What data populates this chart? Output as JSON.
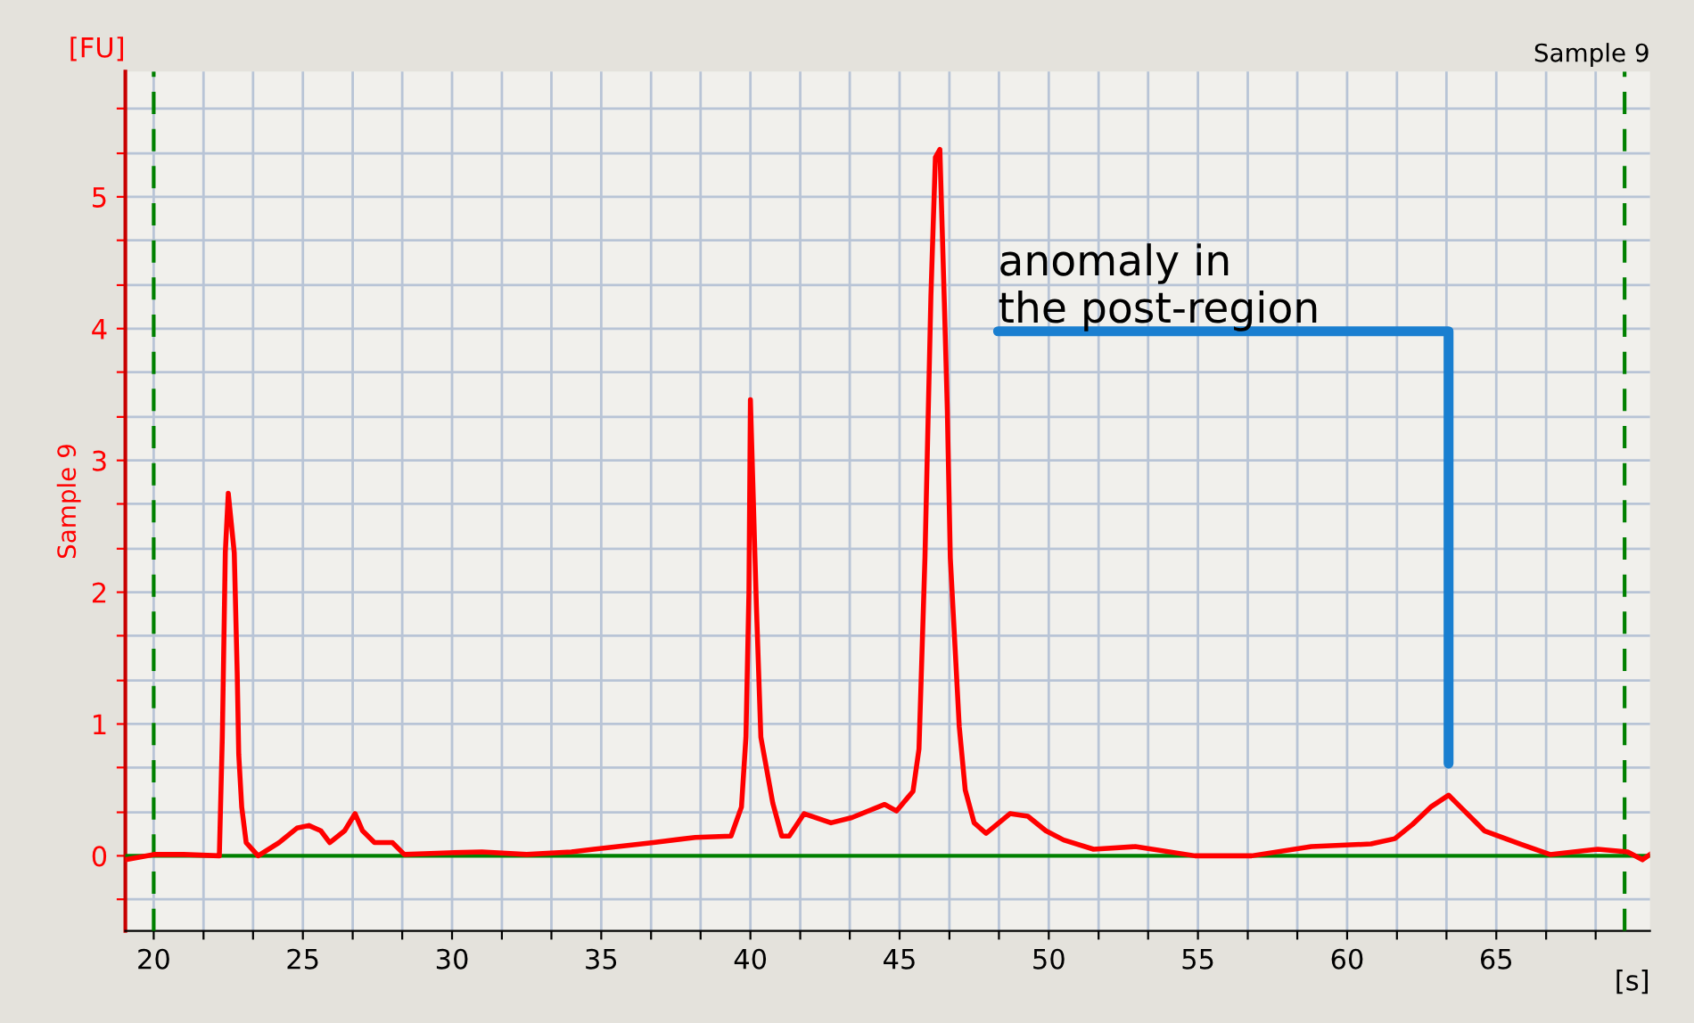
{
  "chart_data": {
    "type": "line",
    "title": "Sample 9",
    "ylabel": "Sample 9",
    "xlabel": "[s]",
    "annotations": [
      "[FU]",
      "anomaly in\nthe post-region"
    ],
    "x": [
      19.05,
      20.0,
      21.0,
      22.2,
      22.3,
      22.4,
      22.5,
      22.7,
      22.8,
      22.85,
      22.95,
      23.1,
      23.5,
      24.2,
      24.8,
      25.2,
      25.6,
      25.9,
      26.4,
      26.75,
      27.0,
      27.4,
      28.0,
      28.4,
      29.5,
      31.0,
      32.5,
      34.0,
      34.75,
      36.75,
      38.15,
      39.35,
      39.7,
      39.85,
      39.95,
      40.0,
      40.2,
      40.35,
      40.75,
      41.05,
      41.3,
      41.8,
      42.7,
      43.4,
      44.5,
      44.9,
      45.45,
      45.65,
      45.85,
      46.05,
      46.2,
      46.35,
      46.5,
      46.6,
      46.7,
      47.0,
      47.2,
      47.5,
      47.9,
      48.7,
      49.3,
      49.9,
      50.5,
      51.5,
      52.9,
      54.9,
      56.8,
      58.8,
      60.8,
      61.6,
      62.2,
      62.8,
      63.4,
      63.8,
      64.6,
      65.8,
      66.8,
      68.4,
      69.4,
      69.9,
      70.15
    ],
    "series": [
      {
        "color": "#ff0000",
        "values": [
          -0.03,
          0.01,
          0.01,
          0.0,
          0.9,
          2.3,
          2.75,
          2.3,
          1.38,
          0.77,
          0.37,
          0.1,
          0.0,
          0.1,
          0.21,
          0.23,
          0.19,
          0.1,
          0.19,
          0.32,
          0.19,
          0.1,
          0.1,
          0.01,
          0.02,
          0.03,
          0.01,
          0.03,
          0.05,
          0.1,
          0.14,
          0.15,
          0.37,
          0.9,
          2.0,
          3.46,
          1.9,
          0.9,
          0.4,
          0.15,
          0.15,
          0.32,
          0.25,
          0.29,
          0.39,
          0.34,
          0.49,
          0.81,
          2.26,
          4.25,
          5.3,
          5.36,
          4.2,
          3.38,
          2.26,
          0.98,
          0.5,
          0.25,
          0.17,
          0.32,
          0.3,
          0.19,
          0.12,
          0.05,
          0.07,
          0.0,
          0.0,
          0.07,
          0.09,
          0.13,
          0.24,
          0.37,
          0.46,
          0.37,
          0.19,
          0.09,
          0.01,
          0.05,
          0.03,
          -0.03,
          0.01
        ]
      }
    ],
    "xlim": [
      19.05,
      70.15
    ],
    "ylim": [
      -0.57,
      5.95
    ],
    "xticks": [
      20,
      {
        "value": 21.67,
        "label": null
      },
      {
        "value": 23.33,
        "label": null
      },
      25,
      {
        "value": 26.67,
        "label": null
      },
      {
        "value": 28.33,
        "label": null
      },
      30,
      {
        "value": 31.67,
        "label": null
      },
      {
        "value": 33.33,
        "label": null
      },
      35,
      {
        "value": 36.67,
        "label": null
      },
      {
        "value": 38.33,
        "label": null
      },
      40,
      {
        "value": 41.67,
        "label": null
      },
      {
        "value": 43.33,
        "label": null
      },
      45,
      {
        "value": 46.67,
        "label": null
      },
      {
        "value": 48.33,
        "label": null
      },
      50,
      {
        "value": 51.67,
        "label": null
      },
      {
        "value": 53.33,
        "label": null
      },
      55,
      {
        "value": 56.67,
        "label": null
      },
      {
        "value": 58.33,
        "label": null
      },
      60,
      {
        "value": 61.67,
        "label": null
      },
      {
        "value": 63.33,
        "label": null
      },
      65,
      {
        "value": 66.67,
        "label": null
      },
      {
        "value": 68.33,
        "label": null
      }
    ],
    "yticks": [
      {
        "value": -0.33,
        "label": null
      },
      0,
      {
        "value": 0.33,
        "label": null
      },
      {
        "value": 0.67,
        "label": null
      },
      1,
      {
        "value": 1.33,
        "label": null
      },
      {
        "value": 1.67,
        "label": null
      },
      2,
      {
        "value": 2.33,
        "label": null
      },
      {
        "value": 2.67,
        "label": null
      },
      3,
      {
        "value": 3.33,
        "label": null
      },
      {
        "value": 3.67,
        "label": null
      },
      4,
      {
        "value": 4.33,
        "label": null
      },
      {
        "value": 4.67,
        "label": null
      },
      5,
      {
        "value": 5.33,
        "label": null
      },
      {
        "value": 5.67,
        "label": null
      }
    ],
    "ref_lines": [
      {
        "axis": "x",
        "value": 20,
        "color": "#008000",
        "line_style": "dashed"
      },
      {
        "axis": "x",
        "value": 69.3,
        "color": "#008000",
        "line_style": "dashed"
      },
      {
        "axis": "y",
        "value": 0,
        "color": "#008000",
        "line_style": "solid"
      }
    ],
    "grid": true,
    "legend": false,
    "marker": "none",
    "line_style": "solid"
  }
}
